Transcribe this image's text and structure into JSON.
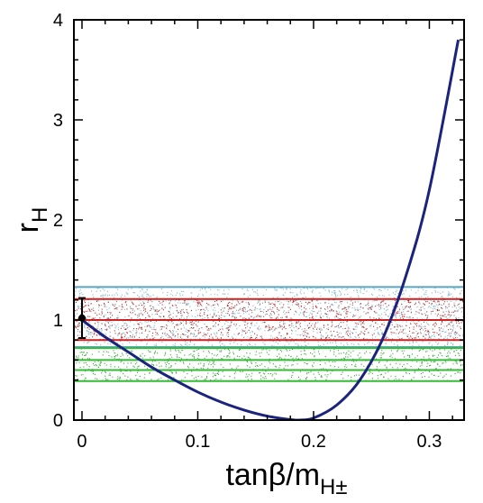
{
  "chart_data": {
    "type": "line",
    "title": "",
    "xlabel": "tanβ/m",
    "xlabel_sub": "H±",
    "ylabel": "r",
    "ylabel_sub": "H",
    "xlim": [
      -0.007,
      0.33
    ],
    "ylim": [
      0,
      4
    ],
    "x_ticks": [
      0,
      0.1,
      0.2,
      0.3
    ],
    "x_tick_labels": [
      "0",
      "0.1",
      "0.2",
      "0.3"
    ],
    "y_ticks": [
      0,
      1,
      2,
      3,
      4
    ],
    "y_tick_labels": [
      "0",
      "1",
      "2",
      "3",
      "4"
    ],
    "grid": false,
    "series": [
      {
        "line_color": "#1a237e",
        "x": [
          0.0,
          0.02,
          0.04,
          0.06,
          0.08,
          0.1,
          0.12,
          0.14,
          0.16,
          0.18,
          0.188,
          0.2,
          0.22,
          0.24,
          0.26,
          0.28,
          0.3,
          0.325
        ],
        "y": [
          1.0,
          0.83,
          0.68,
          0.53,
          0.4,
          0.28,
          0.18,
          0.1,
          0.04,
          0.005,
          0.0,
          0.02,
          0.15,
          0.4,
          0.82,
          1.45,
          2.3,
          3.8
        ]
      }
    ],
    "bands": [
      {
        "color": "#5aa8c0",
        "dots": "#7fb8cc",
        "y_low": 0.73,
        "y_high": 1.33
      },
      {
        "color": "#cc2222",
        "dots": "#c03030",
        "y_low": 0.8,
        "y_high": 1.21
      },
      {
        "color": "#33bb33",
        "dots": "#33aa33",
        "y_low": 0.39,
        "y_high": 0.72
      }
    ],
    "band_inner_lines": [
      {
        "color": "#cc2222",
        "y": 1.0
      },
      {
        "color": "#33bb33",
        "y": 0.5
      },
      {
        "color": "#33bb33",
        "y": 0.6
      }
    ],
    "measurement": {
      "x": 0.0,
      "y": 1.02,
      "y_low": 0.82,
      "y_high": 1.22,
      "color": "#000000"
    }
  }
}
